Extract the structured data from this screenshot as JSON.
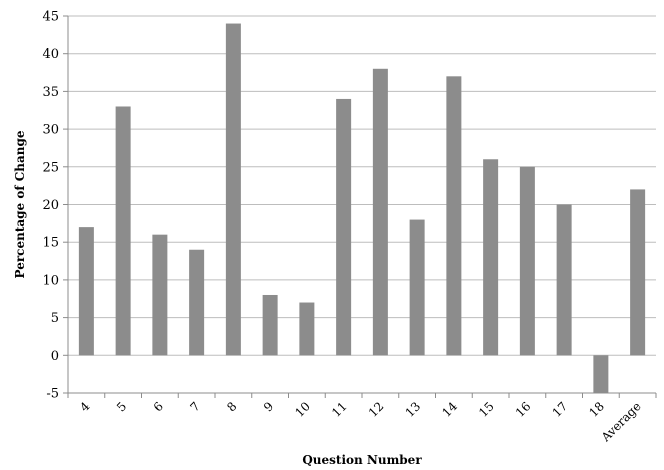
{
  "chart_data": {
    "type": "bar",
    "title": "",
    "xlabel": "Question Number",
    "ylabel": "Percentage of Change",
    "categories": [
      "4",
      "5",
      "6",
      "7",
      "8",
      "9",
      "10",
      "11",
      "12",
      "13",
      "14",
      "15",
      "16",
      "17",
      "18",
      "Average"
    ],
    "values": [
      17,
      33,
      16,
      14,
      44,
      8,
      7,
      34,
      38,
      18,
      37,
      26,
      25,
      20,
      -5,
      22
    ],
    "ylim": [
      -5,
      45
    ],
    "yticks": [
      "-5",
      "0",
      "5",
      "10",
      "15",
      "20",
      "25",
      "30",
      "35",
      "40",
      "45"
    ],
    "grid": true,
    "legend": "none",
    "colors": {
      "bar": "#8c8c8c",
      "grid": "#bdbdbd",
      "axis": "#8c8c8c"
    }
  }
}
